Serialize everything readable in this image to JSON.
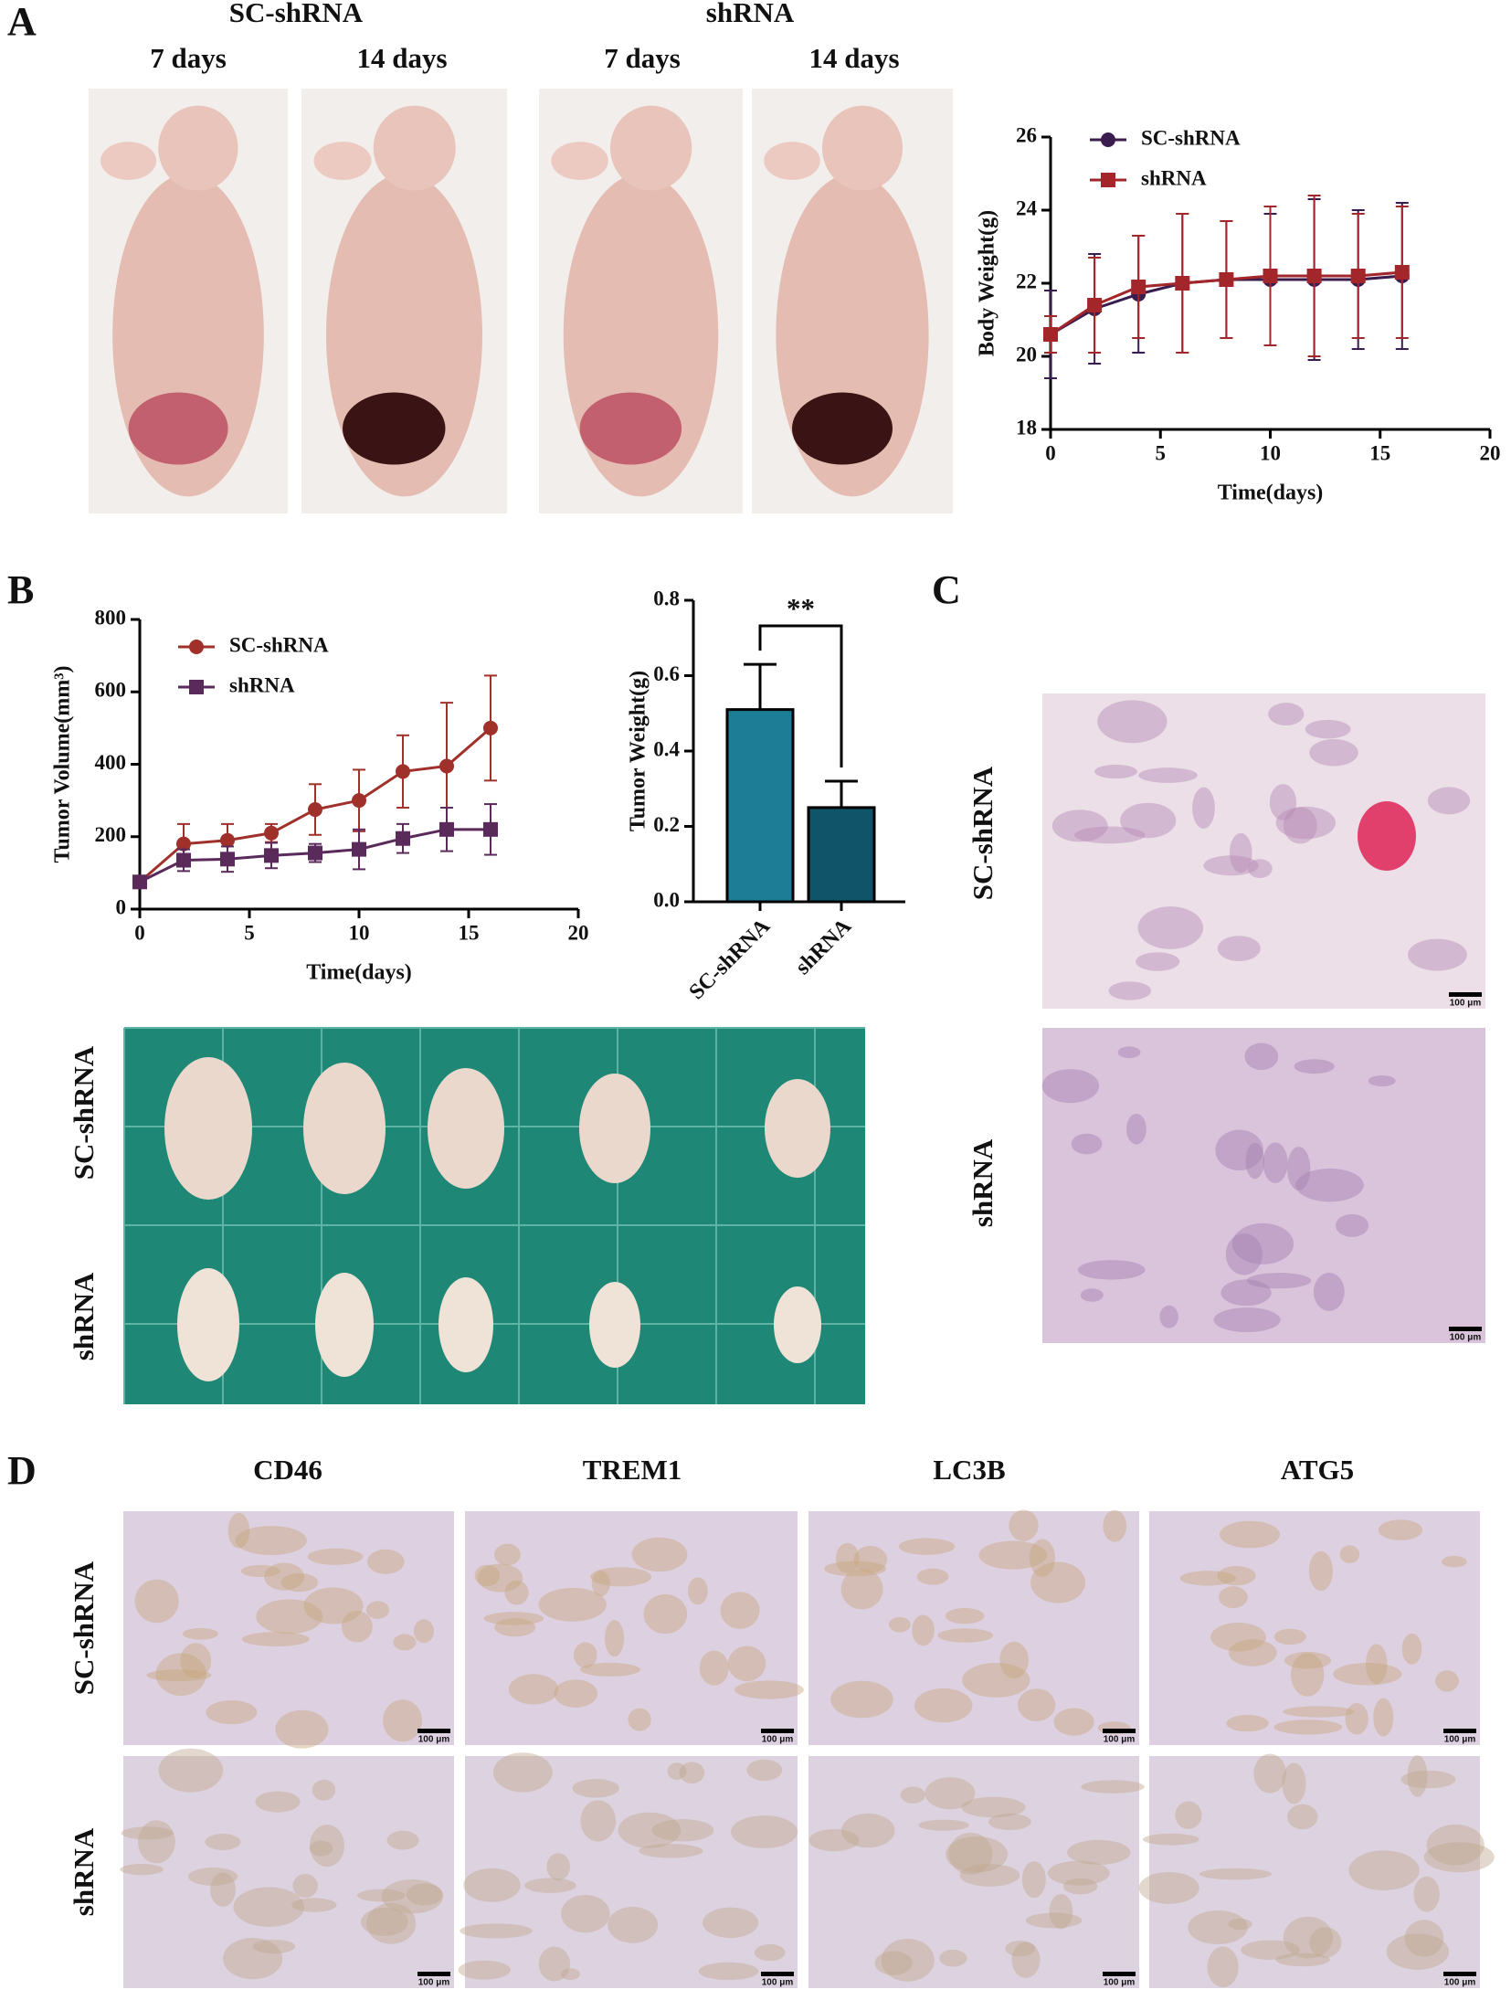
{
  "panels": {
    "A": {
      "letter": "A",
      "groups": [
        {
          "name": "SC-shRNA",
          "days": [
            "7 days",
            "14 days"
          ]
        },
        {
          "name": "shRNA",
          "days": [
            "7 days",
            "14 days"
          ]
        }
      ]
    },
    "B": {
      "letter": "B",
      "rows": [
        "SC-shRNA",
        "shRNA"
      ]
    },
    "C": {
      "letter": "C",
      "rows": [
        "SC-shRNA",
        "shRNA"
      ]
    },
    "D": {
      "letter": "D",
      "columns": [
        "CD46",
        "TREM1",
        "LC3B",
        "ATG5"
      ],
      "rows": [
        "SC-shRNA",
        "shRNA"
      ]
    },
    "scale_bar": "100 μm"
  },
  "chart_data": [
    {
      "type": "line",
      "x": [
        0,
        2,
        4,
        6,
        8,
        10,
        12,
        14,
        16
      ],
      "xlim": [
        0,
        20
      ],
      "xticks": [
        0,
        5,
        10,
        15,
        20
      ],
      "ylim": [
        18,
        26
      ],
      "yticks": [
        18,
        20,
        22,
        24,
        26
      ],
      "x_label": "Time(days)",
      "y_label": "Body Weight(g)",
      "series": [
        {
          "name": "SC-shRNA",
          "color": "#3b1c4e",
          "marker": "circle",
          "values": [
            20.6,
            21.3,
            21.7,
            22.0,
            22.1,
            22.1,
            22.1,
            22.1,
            22.2
          ],
          "errors": [
            1.2,
            1.5,
            1.6,
            1.9,
            1.6,
            1.8,
            2.2,
            1.9,
            2.0
          ]
        },
        {
          "name": "shRNA",
          "color": "#a3262a",
          "marker": "square",
          "values": [
            20.6,
            21.4,
            21.9,
            22.0,
            22.1,
            22.2,
            22.2,
            22.2,
            22.3
          ],
          "errors": [
            0.5,
            1.3,
            1.4,
            1.9,
            1.6,
            1.9,
            2.2,
            1.7,
            1.8
          ]
        }
      ]
    },
    {
      "type": "line",
      "x": [
        0,
        2,
        4,
        6,
        8,
        10,
        12,
        14,
        16
      ],
      "xlim": [
        0,
        20
      ],
      "xticks": [
        0,
        5,
        10,
        15,
        20
      ],
      "ylim": [
        0,
        800
      ],
      "yticks": [
        0,
        200,
        400,
        600,
        800
      ],
      "x_label": "Time(days)",
      "y_label": "Tumor Volume(mm³)",
      "series": [
        {
          "name": "SC-shRNA",
          "color": "#a0302a",
          "marker": "circle",
          "values": [
            75,
            180,
            190,
            210,
            275,
            300,
            380,
            395,
            500
          ],
          "errors": [
            15,
            55,
            45,
            25,
            70,
            85,
            100,
            175,
            145
          ]
        },
        {
          "name": "shRNA",
          "color": "#5a2a5a",
          "marker": "square",
          "values": [
            75,
            135,
            138,
            148,
            155,
            165,
            195,
            220,
            220
          ],
          "errors": [
            15,
            30,
            35,
            35,
            25,
            55,
            40,
            60,
            70
          ]
        }
      ]
    },
    {
      "type": "bar",
      "categories": [
        "SC-shRNA",
        "shRNA"
      ],
      "values": [
        0.51,
        0.25
      ],
      "errors": [
        0.12,
        0.07
      ],
      "colors": [
        "#1d7d97",
        "#0f5468"
      ],
      "ylim": [
        0,
        0.8
      ],
      "yticks": [
        {
          "value": 0,
          "label": "0.0"
        },
        0.2,
        0.4,
        0.6,
        0.8
      ],
      "y_label": "Tumor Weight(g)",
      "annotation": "**"
    }
  ]
}
